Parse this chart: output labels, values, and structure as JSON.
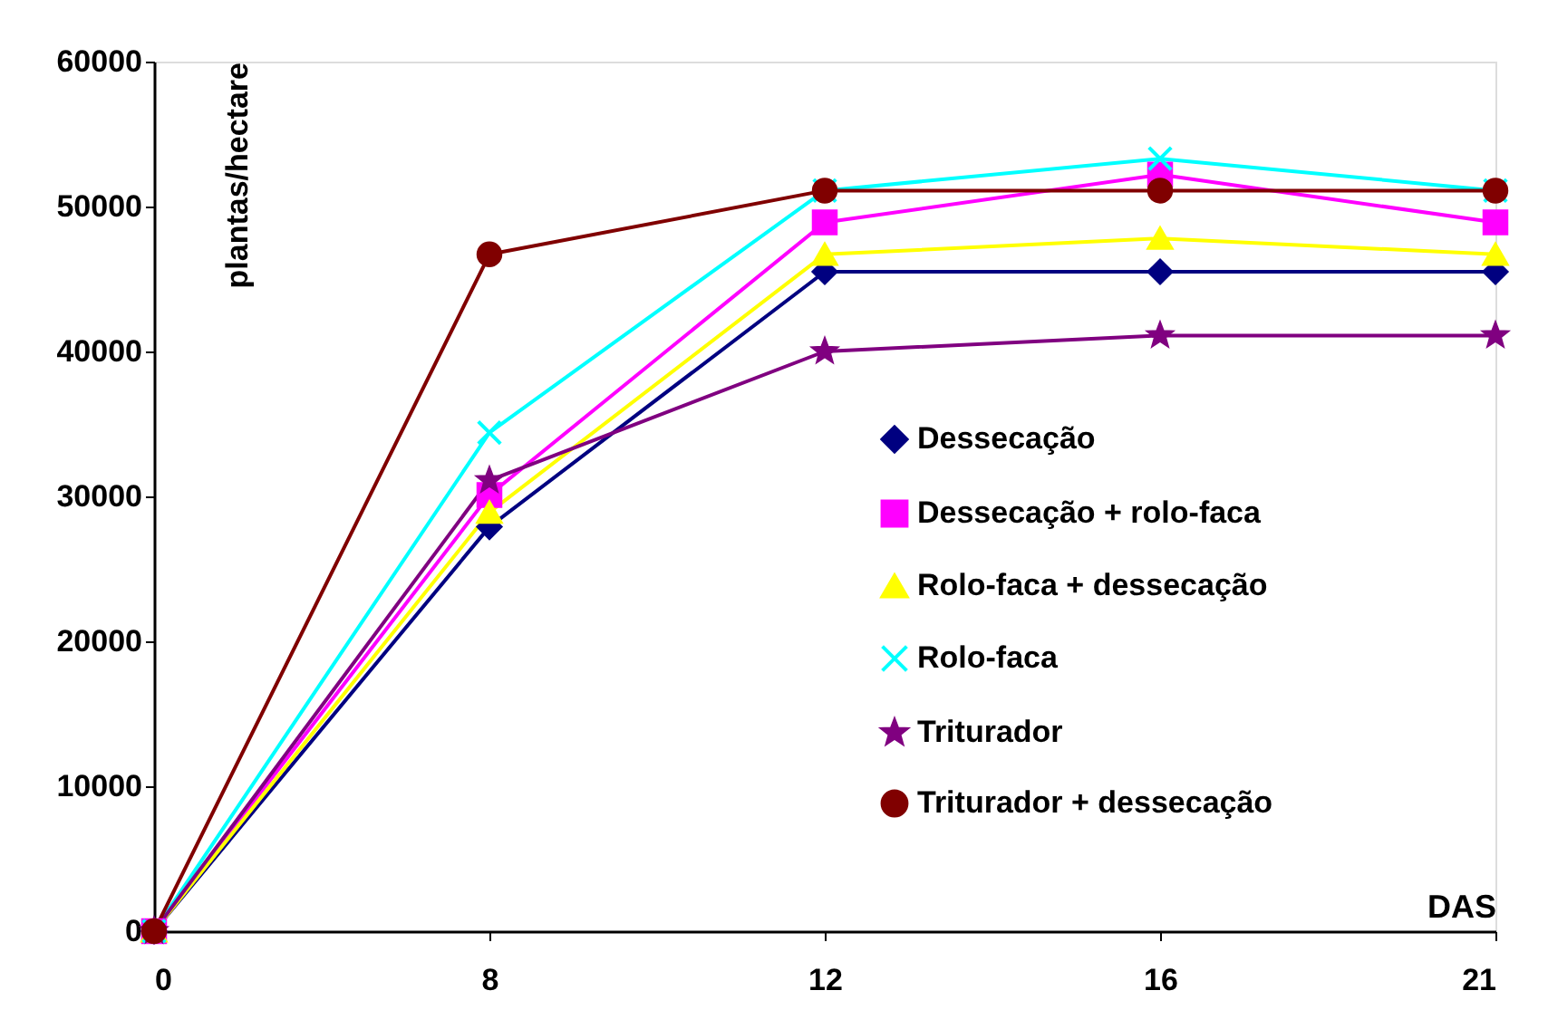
{
  "chart_data": {
    "type": "line",
    "xlabel": "DAS",
    "ylabel": "plantas/hectare",
    "categories": [
      "0",
      "8",
      "12",
      "16",
      "21"
    ],
    "ylim": [
      0,
      60000
    ],
    "yticks": [
      0,
      10000,
      20000,
      30000,
      40000,
      50000,
      60000
    ],
    "grid": false,
    "legend": "right",
    "line_style": "solid",
    "series": [
      {
        "name": "Dessecação",
        "color": "#000080",
        "marker": "diamond",
        "values": [
          0,
          27900,
          45500,
          45500,
          45500
        ]
      },
      {
        "name": "Dessecação + rolo-faca",
        "color": "#ff00ff",
        "marker": "square",
        "values": [
          0,
          30100,
          48900,
          52200,
          48900
        ]
      },
      {
        "name": "Rolo-faca + dessecação",
        "color": "#ffff00",
        "marker": "triangle",
        "values": [
          0,
          28900,
          46700,
          47800,
          46700
        ]
      },
      {
        "name": "Rolo-faca",
        "color": "#00ffff",
        "marker": "cross",
        "values": [
          0,
          34400,
          51100,
          53300,
          51100
        ]
      },
      {
        "name": "Triturador",
        "color": "#800080",
        "marker": "star",
        "values": [
          0,
          31100,
          40000,
          41100,
          41100
        ]
      },
      {
        "name": "Triturador + dessecação",
        "color": "#800000",
        "marker": "circle",
        "values": [
          0,
          46700,
          51100,
          51100,
          51100
        ]
      }
    ]
  }
}
